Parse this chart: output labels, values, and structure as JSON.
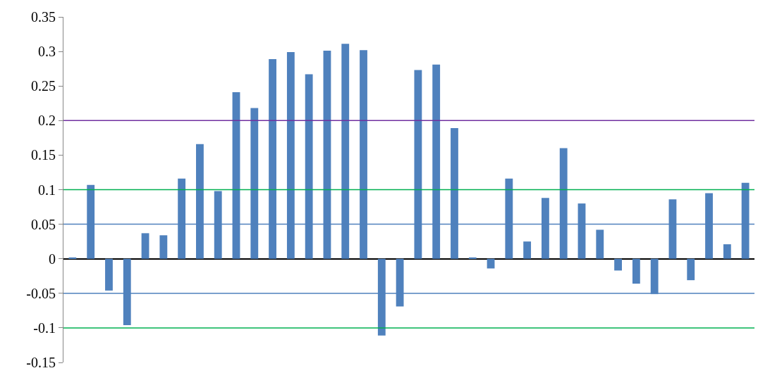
{
  "chart_data": {
    "type": "bar",
    "categories": [
      null,
      null,
      null,
      null,
      null,
      null,
      null,
      null,
      null,
      null,
      null,
      null,
      null,
      null,
      null,
      null,
      null,
      null,
      null,
      null,
      null,
      null,
      null,
      null,
      null,
      null,
      null,
      null,
      null,
      null,
      null,
      null,
      null,
      null,
      null,
      null,
      null,
      null
    ],
    "values": [
      0.002,
      0.107,
      -0.046,
      -0.096,
      0.037,
      0.034,
      0.116,
      0.166,
      0.098,
      0.241,
      0.218,
      0.289,
      0.299,
      0.267,
      0.301,
      0.311,
      0.302,
      -0.111,
      -0.069,
      0.273,
      0.281,
      0.189,
      0.002,
      -0.014,
      0.116,
      0.025,
      0.088,
      0.16,
      0.08,
      0.042,
      -0.017,
      -0.036,
      -0.051,
      0.086,
      -0.031,
      0.095,
      0.021,
      0.11
    ],
    "color": "#4f81bd",
    "ylim": [
      -0.15,
      0.35
    ],
    "yticks": [
      -0.15,
      -0.1,
      -0.05,
      0,
      0.05,
      0.1,
      0.15,
      0.2,
      0.25,
      0.3,
      0.35
    ],
    "tick_labels": "y",
    "grid": false,
    "ref_lines": [
      {
        "axis": "y",
        "value": 0.2,
        "color": "#7030a0"
      },
      {
        "axis": "y",
        "value": 0.1,
        "color": "#00b050"
      },
      {
        "axis": "y",
        "value": 0.05,
        "color": "#4f81bd"
      },
      {
        "axis": "y",
        "value": -0.05,
        "color": "#4f81bd"
      },
      {
        "axis": "y",
        "value": -0.1,
        "color": "#00b050"
      }
    ]
  }
}
